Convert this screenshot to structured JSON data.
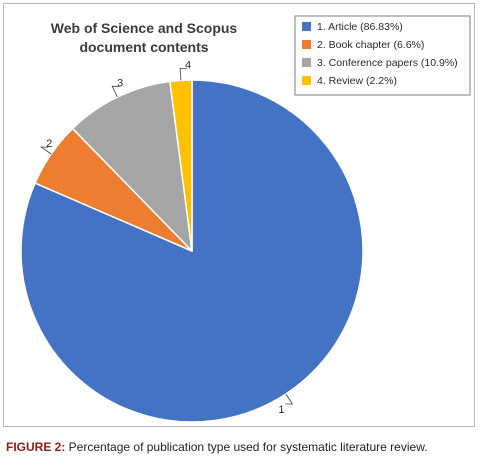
{
  "chart_data": {
    "type": "pie",
    "title_lines": [
      "Web of Science and Scopus",
      "document contents"
    ],
    "slices": [
      {
        "number": "1",
        "legend": "1. Article (86.83%)",
        "value": 86.83,
        "color": "#4472c4"
      },
      {
        "number": "2",
        "legend": "2. Book chapter (6.6%)",
        "value": 6.6,
        "color": "#ed7d31"
      },
      {
        "number": "3",
        "legend": "3. Conference papers (10.9%)",
        "value": 10.9,
        "color": "#a5a5a5"
      },
      {
        "number": "4",
        "legend": "4. Review (2.2%)",
        "value": 2.2,
        "color": "#ffc000"
      }
    ],
    "legend_position": "top-right",
    "start": "12 o'clock",
    "direction": "clockwise"
  },
  "caption": {
    "label": "FIGURE 2:",
    "text": " Percentage of publication type used for systematic literature review."
  }
}
